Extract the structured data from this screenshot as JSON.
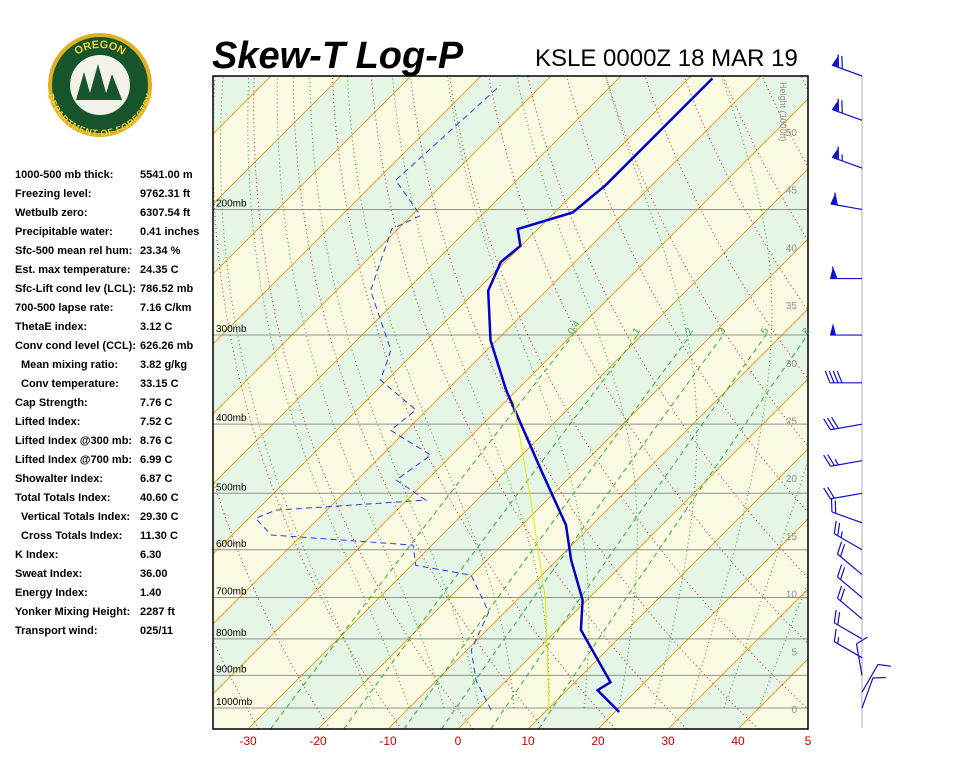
{
  "title": "Skew-T Log-P",
  "station": "KSLE 0000Z 18 MAR 19",
  "logo": {
    "top": "OREGON",
    "bottom": "DEPARTMENT OF FORESTRY"
  },
  "stats": [
    {
      "label": "1000-500 mb thick:",
      "value": "5541.00 m"
    },
    {
      "label": "Freezing level:",
      "value": "9762.31 ft"
    },
    {
      "label": "Wetbulb zero:",
      "value": "6307.54 ft"
    },
    {
      "label": "Precipitable water:",
      "value": "0.41 inches"
    },
    {
      "label": "Sfc-500 mean rel hum:",
      "value": "23.34 %"
    },
    {
      "label": "Est. max temperature:",
      "value": "24.35 C"
    },
    {
      "label": "Sfc-Lift cond lev (LCL):",
      "value": "786.52 mb"
    },
    {
      "label": "700-500 lapse rate:",
      "value": "7.16 C/km"
    },
    {
      "label": "ThetaE index:",
      "value": "3.12 C"
    },
    {
      "label": "Conv cond level (CCL):",
      "value": "626.26 mb"
    },
    {
      "label": "Mean mixing ratio:",
      "value": "3.82 g/kg",
      "indent": true
    },
    {
      "label": "Conv temperature:",
      "value": "33.15 C",
      "indent": true
    },
    {
      "label": "Cap Strength:",
      "value": "7.76 C"
    },
    {
      "label": "Lifted Index:",
      "value": "7.52 C"
    },
    {
      "label": "Lifted Index @300 mb:",
      "value": "8.76 C"
    },
    {
      "label": "Lifted Index @700 mb:",
      "value": "6.99 C"
    },
    {
      "label": "Showalter Index:",
      "value": "6.87 C"
    },
    {
      "label": "Total Totals Index:",
      "value": "40.60 C"
    },
    {
      "label": "Vertical Totals Index:",
      "value": "29.30 C",
      "indent": true
    },
    {
      "label": "Cross Totals Index:",
      "value": "11.30 C",
      "indent": true
    },
    {
      "label": "K Index:",
      "value": "6.30"
    },
    {
      "label": "Sweat Index:",
      "value": "36.00"
    },
    {
      "label": "Energy Index:",
      "value": "1.40"
    },
    {
      "label": "Yonker Mixing Height:",
      "value": "2287 ft"
    },
    {
      "label": "Transport wind:",
      "value": "025/11"
    }
  ],
  "chart_data": {
    "type": "skew-t",
    "log_scale": true,
    "xlim": [
      -35,
      50
    ],
    "ylim": [
      1070,
      130
    ],
    "xticks": [
      -30,
      -20,
      -10,
      0,
      10,
      20,
      30,
      40,
      {
        "value": 50,
        "label": "5"
      }
    ],
    "yticks": [
      {
        "value": 1000,
        "label": "1000mb"
      },
      {
        "value": 900,
        "label": "900mb"
      },
      {
        "value": 800,
        "label": "800mb"
      },
      {
        "value": 700,
        "label": "700mb"
      },
      {
        "value": 600,
        "label": "600mb"
      },
      {
        "value": 500,
        "label": "500mb"
      },
      {
        "value": 400,
        "label": "400mb"
      },
      {
        "value": 300,
        "label": "300mb"
      },
      {
        "value": 200,
        "label": "200mb"
      }
    ],
    "height_axis_label": "Height (1000ft)",
    "height_ticks": [
      0,
      5,
      10,
      15,
      20,
      25,
      30,
      35,
      40,
      45,
      50
    ],
    "mixing_ratio_labels": [
      0.4,
      1,
      2,
      3,
      5,
      8
    ],
    "series": [
      {
        "color": "#0000cc",
        "style": "solid",
        "pressure": [
          1013,
          944,
          920,
          777,
          706,
          620,
          554,
          464,
          358,
          305,
          260,
          237,
          225,
          213,
          202,
          185,
          131
        ],
        "values": [
          20.6,
          14.4,
          15.1,
          3.4,
          -0.6,
          -8,
          -13.7,
          -25.1,
          -41.6,
          -50.9,
          -58.3,
          -60.6,
          -60.1,
          -62.9,
          -57.4,
          -56.6,
          -56.6
        ]
      },
      {
        "color": "#2a3fe0",
        "style": "dashed",
        "pressure": [
          1006,
          914,
          829,
          734,
          651,
          631,
          591,
          572,
          542,
          528,
          511,
          479,
          442,
          408,
          382,
          347,
          315,
          260,
          213,
          204,
          182,
          134
        ],
        "values": [
          2,
          -4.4,
          -9.4,
          -12.3,
          -20.1,
          -29.4,
          -32.7,
          -54.4,
          -59,
          -57.3,
          -37.3,
          -44.4,
          -43,
          -52.3,
          -51.6,
          -60.9,
          -63.7,
          -75.1,
          -80.9,
          -78.7,
          -87.3,
          -85.9
        ]
      },
      {
        "color": "#e8e800",
        "style": "thin",
        "pressure": [
          1013,
          706,
          511,
          370
        ],
        "values": [
          10.6,
          -5.9,
          -22.3,
          -39.1
        ]
      }
    ],
    "winds": {
      "pressure": [
        1000,
        950,
        900,
        850,
        800,
        750,
        700,
        650,
        600,
        550,
        500,
        450,
        400,
        350,
        300,
        250,
        200,
        175,
        150,
        130
      ],
      "direction": [
        20,
        30,
        350,
        300,
        300,
        310,
        310,
        310,
        300,
        290,
        260,
        260,
        260,
        270,
        270,
        270,
        280,
        290,
        290,
        290
      ],
      "speed": [
        10,
        10,
        10,
        15,
        20,
        20,
        20,
        20,
        25,
        20,
        20,
        25,
        30,
        40,
        50,
        60,
        60,
        65,
        70,
        70
      ]
    }
  }
}
